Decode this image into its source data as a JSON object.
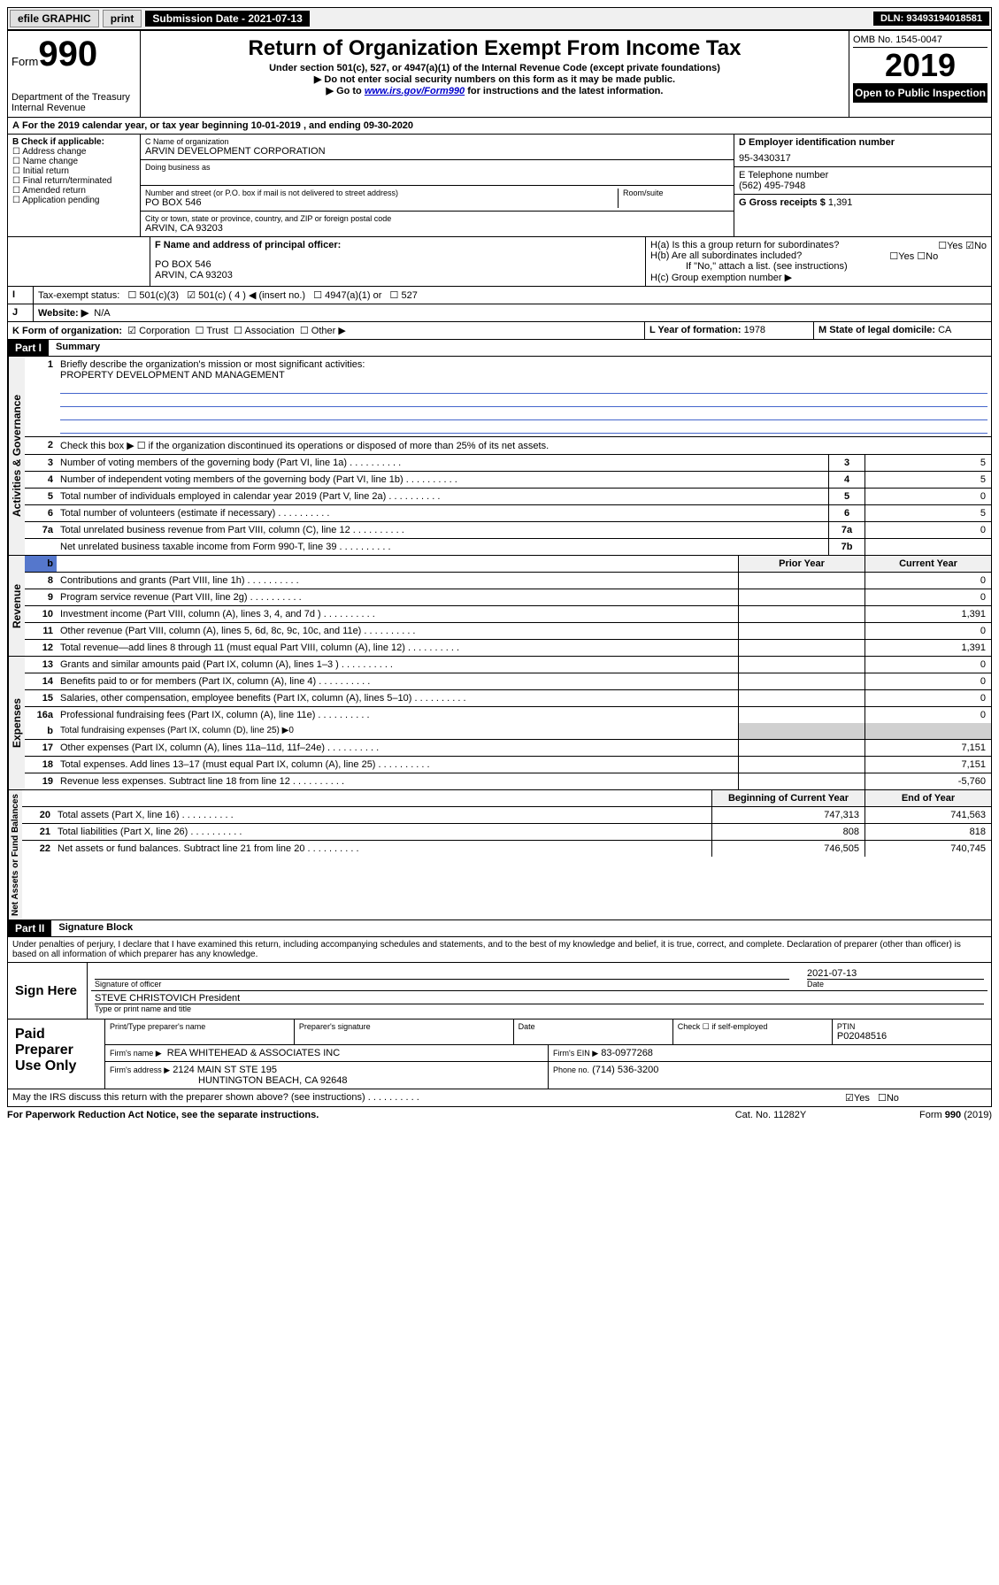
{
  "top": {
    "efile": "efile GRAPHIC",
    "print": "print",
    "sub_label": "Submission Date - 2021-07-13",
    "dln": "DLN: 93493194018581"
  },
  "header": {
    "form": "Form",
    "form_no": "990",
    "dept": "Department of the Treasury",
    "irs": "Internal Revenue",
    "title": "Return of Organization Exempt From Income Tax",
    "sub1": "Under section 501(c), 527, or 4947(a)(1) of the Internal Revenue Code (except private foundations)",
    "sub2": "▶ Do not enter social security numbers on this form as it may be made public.",
    "sub3_pre": "▶ Go to ",
    "sub3_link": "www.irs.gov/Form990",
    "sub3_post": " for instructions and the latest information.",
    "omb": "OMB No. 1545-0047",
    "year": "2019",
    "open": "Open to Public Inspection"
  },
  "a": {
    "text": "For the 2019 calendar year, or tax year beginning 10-01-2019     , and ending 09-30-2020"
  },
  "b": {
    "label": "B Check if applicable:",
    "items": [
      "Address change",
      "Name change",
      "Initial return",
      "Final return/terminated",
      "Amended return",
      "Application pending"
    ]
  },
  "c": {
    "name_label": "C Name of organization",
    "name": "ARVIN DEVELOPMENT CORPORATION",
    "dba_label": "Doing business as",
    "addr_label": "Number and street (or P.O. box if mail is not delivered to street address)",
    "addr": "PO BOX 546",
    "room_label": "Room/suite",
    "city_label": "City or town, state or province, country, and ZIP or foreign postal code",
    "city": "ARVIN, CA  93203"
  },
  "d": {
    "label": "D Employer identification number",
    "value": "95-3430317"
  },
  "e": {
    "label": "E Telephone number",
    "value": "(562) 495-7948"
  },
  "g": {
    "label": "G Gross receipts $",
    "value": "1,391"
  },
  "f": {
    "label": "F  Name and address of principal officer:",
    "addr1": "PO BOX 546",
    "addr2": "ARVIN, CA  93203"
  },
  "h": {
    "a_label": "H(a)  Is this a group return for subordinates?",
    "a_yes": "Yes",
    "a_no": "No",
    "b_label": "H(b)  Are all subordinates included?",
    "b_yes": "Yes",
    "b_no": "No",
    "b_note": "If \"No,\" attach a list. (see instructions)",
    "c_label": "H(c)  Group exemption number ▶"
  },
  "i": {
    "label": "Tax-exempt status:",
    "o1": "501(c)(3)",
    "o2": "501(c) ( 4 ) ◀ (insert no.)",
    "o3": "4947(a)(1) or",
    "o4": "527"
  },
  "j": {
    "label": "Website: ▶",
    "value": "N/A"
  },
  "k": {
    "label": "K Form of organization:",
    "corp": "Corporation",
    "trust": "Trust",
    "assoc": "Association",
    "other": "Other ▶"
  },
  "l": {
    "label": "L Year of formation:",
    "value": "1978"
  },
  "m": {
    "label": "M State of legal domicile:",
    "value": "CA"
  },
  "part1": {
    "header": "Part I",
    "title": "Summary",
    "sec_act": "Activities & Governance",
    "sec_rev": "Revenue",
    "sec_exp": "Expenses",
    "sec_net": "Net Assets or Fund Balances",
    "l1_label": "Briefly describe the organization's mission or most significant activities:",
    "l1_value": "PROPERTY DEVELOPMENT AND MANAGEMENT",
    "l2": "Check this box ▶ ☐  if the organization discontinued its operations or disposed of more than 25% of its net assets.",
    "rows_a": [
      {
        "n": "3",
        "t": "Number of voting members of the governing body (Part VI, line 1a)",
        "box": "3",
        "v": "5"
      },
      {
        "n": "4",
        "t": "Number of independent voting members of the governing body (Part VI, line 1b)",
        "box": "4",
        "v": "5"
      },
      {
        "n": "5",
        "t": "Total number of individuals employed in calendar year 2019 (Part V, line 2a)",
        "box": "5",
        "v": "0"
      },
      {
        "n": "6",
        "t": "Total number of volunteers (estimate if necessary)",
        "box": "6",
        "v": "5"
      },
      {
        "n": "7a",
        "t": "Total unrelated business revenue from Part VIII, column (C), line 12",
        "box": "7a",
        "v": "0"
      },
      {
        "n": "",
        "t": "Net unrelated business taxable income from Form 990-T, line 39",
        "box": "7b",
        "v": ""
      }
    ],
    "col_prior": "Prior Year",
    "col_current": "Current Year",
    "rows_r": [
      {
        "n": "8",
        "t": "Contributions and grants (Part VIII, line 1h)",
        "p": "",
        "c": "0"
      },
      {
        "n": "9",
        "t": "Program service revenue (Part VIII, line 2g)",
        "p": "",
        "c": "0"
      },
      {
        "n": "10",
        "t": "Investment income (Part VIII, column (A), lines 3, 4, and 7d )",
        "p": "",
        "c": "1,391"
      },
      {
        "n": "11",
        "t": "Other revenue (Part VIII, column (A), lines 5, 6d, 8c, 9c, 10c, and 11e)",
        "p": "",
        "c": "0"
      },
      {
        "n": "12",
        "t": "Total revenue—add lines 8 through 11 (must equal Part VIII, column (A), line 12)",
        "p": "",
        "c": "1,391"
      }
    ],
    "rows_e": [
      {
        "n": "13",
        "t": "Grants and similar amounts paid (Part IX, column (A), lines 1–3 )",
        "p": "",
        "c": "0"
      },
      {
        "n": "14",
        "t": "Benefits paid to or for members (Part IX, column (A), line 4)",
        "p": "",
        "c": "0"
      },
      {
        "n": "15",
        "t": "Salaries, other compensation, employee benefits (Part IX, column (A), lines 5–10)",
        "p": "",
        "c": "0"
      },
      {
        "n": "16a",
        "t": "Professional fundraising fees (Part IX, column (A), line 11e)",
        "p": "",
        "c": "0"
      }
    ],
    "l16b": "Total fundraising expenses (Part IX, column (D), line 25) ▶0",
    "rows_e2": [
      {
        "n": "17",
        "t": "Other expenses (Part IX, column (A), lines 11a–11d, 11f–24e)",
        "p": "",
        "c": "7,151"
      },
      {
        "n": "18",
        "t": "Total expenses. Add lines 13–17 (must equal Part IX, column (A), line 25)",
        "p": "",
        "c": "7,151"
      },
      {
        "n": "19",
        "t": "Revenue less expenses. Subtract line 18 from line 12",
        "p": "",
        "c": "-5,760"
      }
    ],
    "col_begin": "Beginning of Current Year",
    "col_end": "End of Year",
    "rows_n": [
      {
        "n": "20",
        "t": "Total assets (Part X, line 16)",
        "p": "747,313",
        "c": "741,563"
      },
      {
        "n": "21",
        "t": "Total liabilities (Part X, line 26)",
        "p": "808",
        "c": "818"
      },
      {
        "n": "22",
        "t": "Net assets or fund balances. Subtract line 21 from line 20",
        "p": "746,505",
        "c": "740,745"
      }
    ]
  },
  "part2": {
    "header": "Part II",
    "title": "Signature Block",
    "decl": "Under penalties of perjury, I declare that I have examined this return, including accompanying schedules and statements, and to the best of my knowledge and belief, it is true, correct, and complete. Declaration of preparer (other than officer) is based on all information of which preparer has any knowledge.",
    "sign_here": "Sign Here",
    "sig_officer": "Signature of officer",
    "sig_date": "2021-07-13",
    "date_label": "Date",
    "name_title": "STEVE CHRISTOVICH President",
    "name_label": "Type or print name and title",
    "paid_label": "Paid Preparer Use Only",
    "p_name_label": "Print/Type preparer's name",
    "p_sig_label": "Preparer's signature",
    "p_date_label": "Date",
    "p_self": "Check ☐ if self-employed",
    "p_ptin_label": "PTIN",
    "p_ptin": "P02048516",
    "firm_name_label": "Firm's name     ▶",
    "firm_name": "REA WHITEHEAD & ASSOCIATES INC",
    "firm_ein_label": "Firm's EIN ▶",
    "firm_ein": "83-0977268",
    "firm_addr_label": "Firm's address ▶",
    "firm_addr1": "2124 MAIN ST STE 195",
    "firm_addr2": "HUNTINGTON BEACH, CA  92648",
    "phone_label": "Phone no.",
    "phone": "(714) 536-3200",
    "discuss": "May the IRS discuss this return with the preparer shown above? (see instructions)",
    "d_yes": "Yes",
    "d_no": "No"
  },
  "footer": {
    "pra": "For Paperwork Reduction Act Notice, see the separate instructions.",
    "cat": "Cat. No. 11282Y",
    "form": "Form 990 (2019)"
  },
  "colors": {
    "bg": "#ffffff",
    "text": "#000000",
    "link": "#0000cc",
    "blue_line": "#4466cc",
    "shade": "#d0d0d0"
  }
}
